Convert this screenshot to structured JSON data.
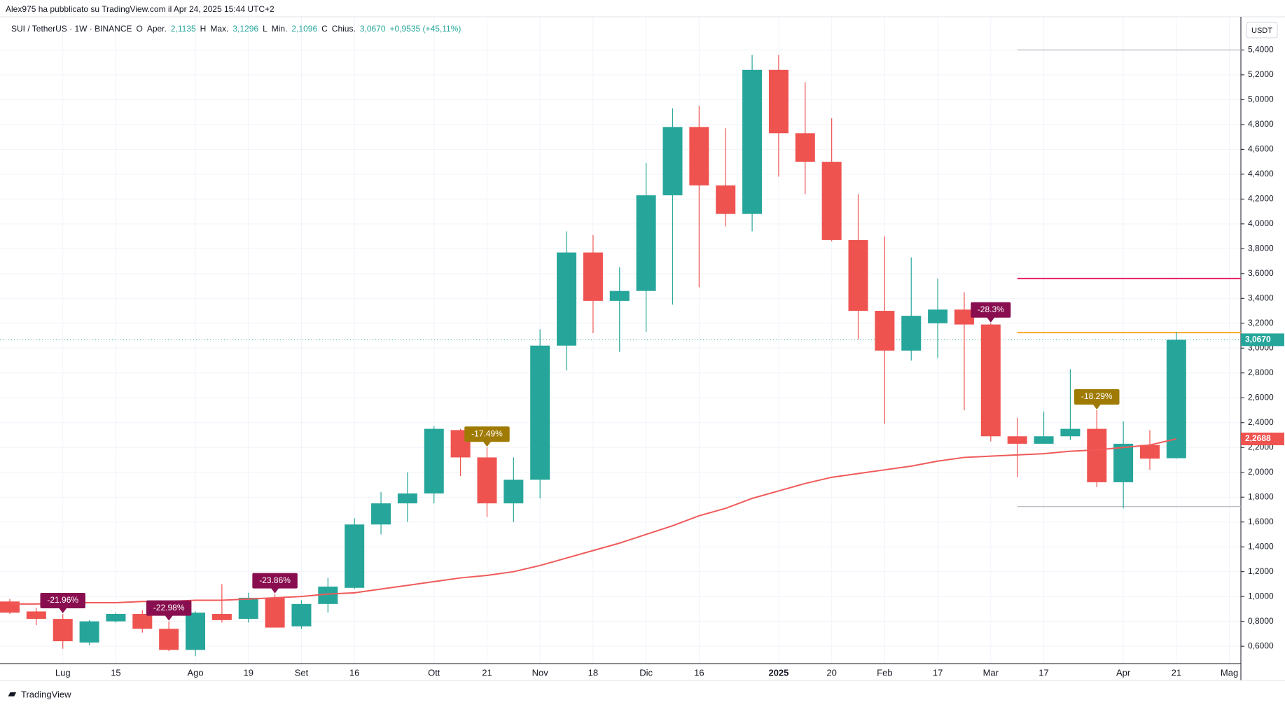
{
  "header": "Alex975 ha pubblicato su TradingView.com il Apr 24, 2025 15:44 UTC+2",
  "footer": "TradingView",
  "chart_data": {
    "type": "candlestick",
    "currency": "USDT",
    "legend": {
      "symbol": "SUI / TetherUS · 1W · BINANCE",
      "items": [
        {
          "key": "O",
          "name": "Aper.",
          "value": "2,1135"
        },
        {
          "key": "H",
          "name": "Max.",
          "value": "3,1296"
        },
        {
          "key": "L",
          "name": "Min.",
          "value": "2,1096"
        },
        {
          "key": "C",
          "name": "Chius.",
          "value": "3,0670"
        }
      ],
      "change": "+0,9535 (+45,11%)"
    },
    "up_color": "#26a69a",
    "down_color": "#ef5350",
    "ma_color": "#f05a5a",
    "open": [
      0.96,
      0.88,
      0.82,
      0.63,
      0.8,
      0.86,
      0.74,
      0.57,
      0.86,
      0.82,
      0.99,
      0.76,
      0.94,
      1.07,
      1.58,
      1.75,
      1.83,
      2.34,
      2.12,
      1.75,
      1.94,
      3.02,
      3.77,
      3.38,
      3.46,
      4.23,
      4.78,
      4.31,
      4.08,
      5.24,
      4.73,
      4.5,
      3.87,
      3.3,
      2.98,
      3.2,
      3.31,
      3.19,
      2.29,
      2.23,
      2.29,
      2.35,
      1.92,
      2.22,
      2.1135
    ],
    "high": [
      0.98,
      0.91,
      0.86,
      0.81,
      0.87,
      0.89,
      0.8,
      0.88,
      1.1,
      1.03,
      1.02,
      0.97,
      1.15,
      1.63,
      1.84,
      2.0,
      2.37,
      2.35,
      2.2,
      2.12,
      3.15,
      3.94,
      3.91,
      3.65,
      4.49,
      4.93,
      4.95,
      4.77,
      5.36,
      5.36,
      5.14,
      4.85,
      4.24,
      3.9,
      3.73,
      3.56,
      3.45,
      3.2,
      2.44,
      2.49,
      2.83,
      2.5,
      2.41,
      2.34,
      3.1296
    ],
    "low": [
      0.86,
      0.77,
      0.58,
      0.61,
      0.79,
      0.71,
      0.56,
      0.52,
      0.79,
      0.79,
      0.75,
      0.74,
      0.87,
      1.06,
      1.5,
      1.6,
      1.75,
      1.97,
      1.64,
      1.6,
      1.79,
      2.82,
      3.12,
      2.97,
      3.13,
      3.35,
      3.49,
      3.98,
      3.94,
      4.38,
      4.24,
      3.86,
      3.07,
      2.39,
      2.9,
      2.92,
      2.5,
      2.25,
      1.96,
      2.23,
      2.26,
      1.88,
      1.71,
      2.02,
      2.1096
    ],
    "close": [
      0.87,
      0.82,
      0.64,
      0.8,
      0.86,
      0.74,
      0.57,
      0.87,
      0.81,
      0.99,
      0.75,
      0.94,
      1.08,
      1.58,
      1.75,
      1.83,
      2.35,
      2.12,
      1.75,
      1.94,
      3.02,
      3.77,
      3.38,
      3.46,
      4.23,
      4.78,
      4.31,
      4.08,
      5.24,
      4.73,
      4.5,
      3.87,
      3.3,
      2.98,
      3.26,
      3.31,
      3.19,
      2.29,
      2.23,
      2.29,
      2.35,
      1.92,
      2.23,
      2.11,
      3.067
    ],
    "ma": [
      0.94,
      0.94,
      0.95,
      0.95,
      0.95,
      0.96,
      0.96,
      0.97,
      0.97,
      0.98,
      0.99,
      1.0,
      1.02,
      1.03,
      1.06,
      1.09,
      1.12,
      1.15,
      1.17,
      1.2,
      1.25,
      1.31,
      1.37,
      1.43,
      1.5,
      1.57,
      1.65,
      1.71,
      1.79,
      1.85,
      1.91,
      1.96,
      1.99,
      2.02,
      2.05,
      2.09,
      2.12,
      2.13,
      2.14,
      2.15,
      2.17,
      2.18,
      2.2,
      2.22,
      2.2688
    ],
    "ma_value_label": "2,2688",
    "close_value_label": "3,0670",
    "annotations": [
      {
        "index": 2,
        "label": "-21.96%",
        "color": "#880e4f"
      },
      {
        "index": 6,
        "label": "-22.98%",
        "color": "#880e4f"
      },
      {
        "index": 10,
        "label": "-23.86%",
        "color": "#880e4f"
      },
      {
        "index": 18,
        "label": "-17.49%",
        "color": "#a07b04"
      },
      {
        "index": 37,
        "label": "-28.3%",
        "color": "#880e4f"
      },
      {
        "index": 41,
        "label": "-18.29%",
        "color": "#a07b04"
      }
    ],
    "levels": [
      {
        "value": 5.4,
        "color": "#b2b5be"
      },
      {
        "value": 3.56,
        "color": "#e91e63"
      },
      {
        "value": 3.125,
        "color": "#ffa726"
      },
      {
        "value": 1.724,
        "color": "#b2b5be"
      }
    ],
    "xlabels": [
      {
        "index": 2,
        "label": "Lug"
      },
      {
        "index": 4,
        "label": "15"
      },
      {
        "index": 7,
        "label": "Ago"
      },
      {
        "index": 9,
        "label": "19"
      },
      {
        "index": 11,
        "label": "Set"
      },
      {
        "index": 13,
        "label": "16"
      },
      {
        "index": 16,
        "label": "Ott"
      },
      {
        "index": 18,
        "label": "21"
      },
      {
        "index": 20,
        "label": "Nov"
      },
      {
        "index": 22,
        "label": "18"
      },
      {
        "index": 24,
        "label": "Dic"
      },
      {
        "index": 26,
        "label": "16"
      },
      {
        "index": 29,
        "label": "2025"
      },
      {
        "index": 31,
        "label": "20"
      },
      {
        "index": 33,
        "label": "Feb"
      },
      {
        "index": 35,
        "label": "17"
      },
      {
        "index": 37,
        "label": "Mar"
      },
      {
        "index": 39,
        "label": "17"
      },
      {
        "index": 42,
        "label": "Apr"
      },
      {
        "index": 44,
        "label": "21"
      },
      {
        "index": 46,
        "label": "Mag"
      }
    ],
    "ylim": [
      0.46,
      5.67
    ],
    "yticks": [
      {
        "value": 0.6,
        "label": "0,6000"
      },
      {
        "value": 0.8,
        "label": "0,8000"
      },
      {
        "value": 1.0,
        "label": "1,0000"
      },
      {
        "value": 1.2,
        "label": "1,2000"
      },
      {
        "value": 1.4,
        "label": "1,4000"
      },
      {
        "value": 1.6,
        "label": "1,6000"
      },
      {
        "value": 1.8,
        "label": "1,8000"
      },
      {
        "value": 2.0,
        "label": "2,0000"
      },
      {
        "value": 2.2,
        "label": "2,2000"
      },
      {
        "value": 2.4,
        "label": "2,4000"
      },
      {
        "value": 2.6,
        "label": "2,6000"
      },
      {
        "value": 2.8,
        "label": "2,8000"
      },
      {
        "value": 3.0,
        "label": "3,0000"
      },
      {
        "value": 3.2,
        "label": "3,2000"
      },
      {
        "value": 3.4,
        "label": "3,4000"
      },
      {
        "value": 3.6,
        "label": "3,6000"
      },
      {
        "value": 3.8,
        "label": "3,8000"
      },
      {
        "value": 4.0,
        "label": "4,0000"
      },
      {
        "value": 4.2,
        "label": "4,2000"
      },
      {
        "value": 4.4,
        "label": "4,4000"
      },
      {
        "value": 4.6,
        "label": "4,6000"
      },
      {
        "value": 4.8,
        "label": "4,8000"
      },
      {
        "value": 5.0,
        "label": "5,0000"
      },
      {
        "value": 5.2,
        "label": "5,2000"
      },
      {
        "value": 5.4,
        "label": "5,4000"
      }
    ],
    "grid": true
  }
}
